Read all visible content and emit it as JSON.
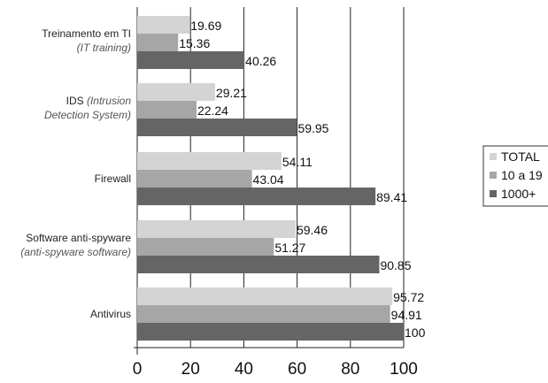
{
  "chart_data": {
    "type": "bar",
    "orientation": "horizontal",
    "categories": [
      {
        "label": "Treinamento em TI",
        "sublabel": "(IT training)"
      },
      {
        "label": "IDS ",
        "label_italic": "(Intrusion",
        "sublabel": "Detection System)"
      },
      {
        "label": "Firewall"
      },
      {
        "label": "Software anti-spyware",
        "sublabel": "(anti-spyware software)"
      },
      {
        "label": "Antivirus"
      }
    ],
    "series": [
      {
        "name": "TOTAL",
        "color": "#d4d4d4",
        "values": [
          19.69,
          29.21,
          54.11,
          59.46,
          95.72
        ]
      },
      {
        "name": "10 a 19",
        "color": "#a6a6a6",
        "values": [
          15.36,
          22.24,
          43.04,
          51.27,
          94.91
        ]
      },
      {
        "name": "1000+",
        "color": "#656565",
        "values": [
          40.26,
          59.95,
          89.41,
          90.85,
          100
        ]
      }
    ],
    "value_labels": [
      [
        "19.69",
        "15.36",
        "40.26"
      ],
      [
        "29.21",
        "22.24",
        "59.95"
      ],
      [
        "54.11",
        "43.04",
        "89.41"
      ],
      [
        "59.46",
        "51.27",
        "90.85"
      ],
      [
        "95.72",
        "94.91",
        "100"
      ]
    ],
    "x_ticks": [
      "0",
      "20",
      "40",
      "60",
      "80",
      "100"
    ],
    "xlim": [
      0,
      100
    ],
    "grid": "vertical",
    "legend_position": "right"
  }
}
